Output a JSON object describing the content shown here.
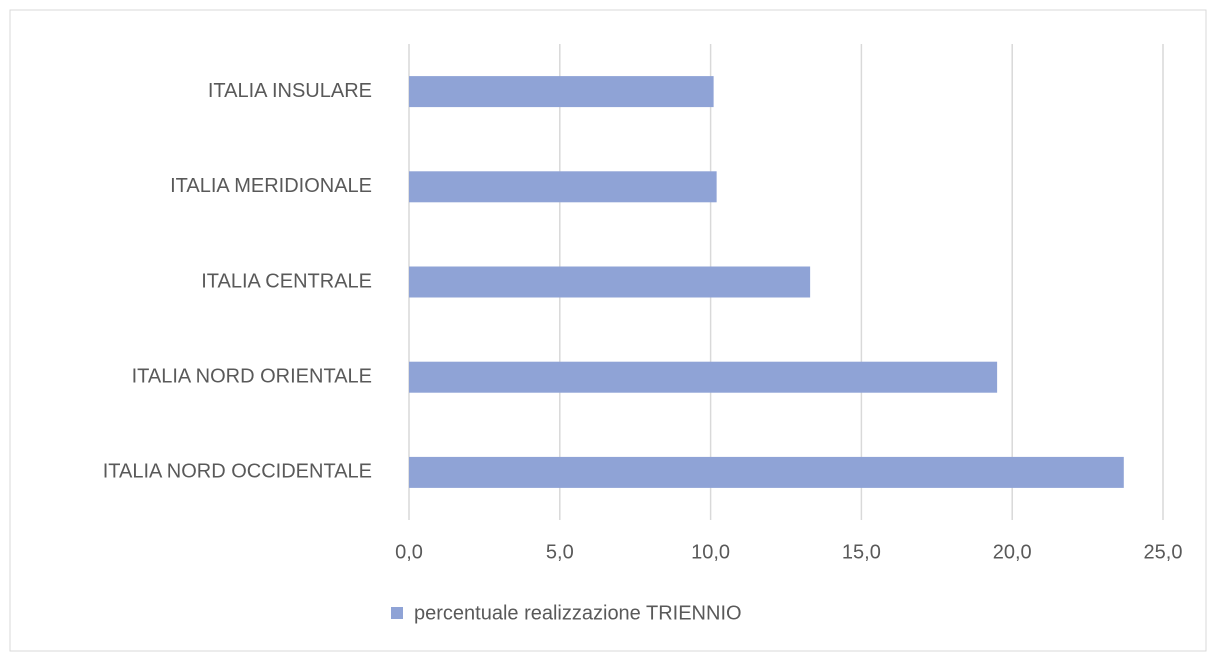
{
  "chart_data": {
    "type": "barh",
    "categories": [
      "ITALIA INSULARE",
      "ITALIA MERIDIONALE",
      "ITALIA CENTRALE",
      "ITALIA NORD ORIENTALE",
      "ITALIA NORD OCCIDENTALE"
    ],
    "series": [
      {
        "name": "percentuale realizzazione TRIENNIO",
        "color": "#8fa3d6",
        "values": [
          10.1,
          10.2,
          13.3,
          19.5,
          23.7
        ]
      }
    ],
    "xlim": [
      0,
      25
    ],
    "xticks": [
      {
        "value": 0,
        "label": "0,0"
      },
      {
        "value": 5,
        "label": "5,0"
      },
      {
        "value": 10,
        "label": "10,0"
      },
      {
        "value": 15,
        "label": "15,0"
      },
      {
        "value": 20,
        "label": "20,0"
      },
      {
        "value": 25,
        "label": "25,0"
      }
    ],
    "grid": true,
    "legend": "bottom"
  }
}
